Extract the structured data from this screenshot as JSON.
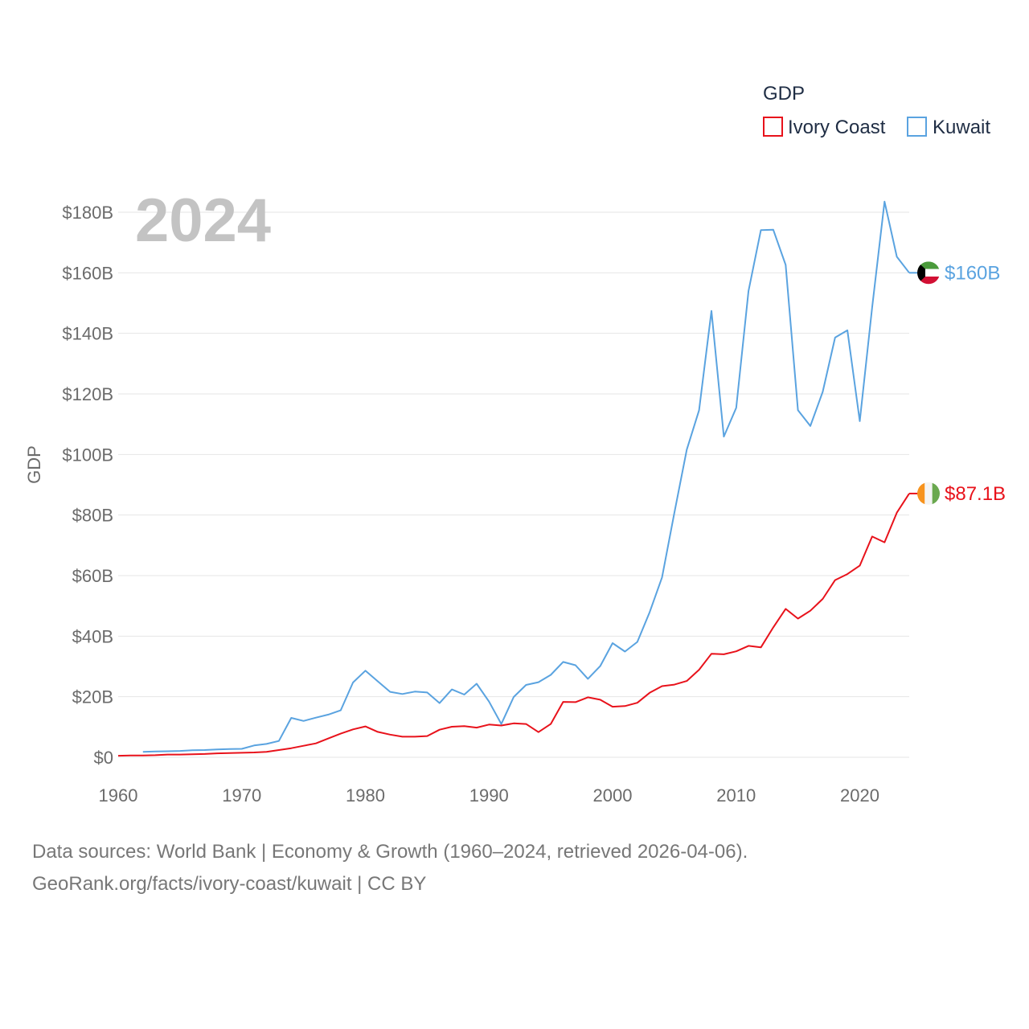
{
  "chart_data": {
    "type": "line",
    "title": "",
    "year_label": "2024",
    "xlabel": "",
    "ylabel": "GDP",
    "xlim": [
      1960,
      2024
    ],
    "ylim": [
      0,
      185
    ],
    "x_ticks": [
      1960,
      1970,
      1980,
      1990,
      2000,
      2010,
      2020
    ],
    "y_ticks": [
      0,
      20,
      40,
      60,
      80,
      100,
      120,
      140,
      160,
      180
    ],
    "y_tick_labels": [
      "$0",
      "$20B",
      "$40B",
      "$60B",
      "$80B",
      "$100B",
      "$120B",
      "$140B",
      "$160B",
      "$180B"
    ],
    "legend": {
      "title": "GDP",
      "position": "top-right",
      "entries": [
        "Ivory Coast",
        "Kuwait"
      ]
    },
    "series": [
      {
        "name": "Ivory Coast",
        "color": "#e8121b",
        "end_label": "$87.1B",
        "flag_icon": "ivory-coast-flag-icon",
        "x": [
          1960,
          1961,
          1962,
          1963,
          1964,
          1965,
          1966,
          1967,
          1968,
          1969,
          1970,
          1971,
          1972,
          1973,
          1974,
          1975,
          1976,
          1977,
          1978,
          1979,
          1980,
          1981,
          1982,
          1983,
          1984,
          1985,
          1986,
          1987,
          1988,
          1989,
          1990,
          1991,
          1992,
          1993,
          1994,
          1995,
          1996,
          1997,
          1998,
          1999,
          2000,
          2001,
          2002,
          2003,
          2004,
          2005,
          2006,
          2007,
          2008,
          2009,
          2010,
          2011,
          2012,
          2013,
          2014,
          2015,
          2016,
          2017,
          2018,
          2019,
          2020,
          2021,
          2022,
          2023,
          2024
        ],
        "values": [
          0.5,
          0.6,
          0.6,
          0.7,
          0.9,
          0.9,
          1.0,
          1.1,
          1.3,
          1.4,
          1.5,
          1.6,
          1.8,
          2.4,
          3.0,
          3.8,
          4.6,
          6.2,
          7.8,
          9.2,
          10.2,
          8.4,
          7.5,
          6.8,
          6.8,
          7.0,
          9.1,
          10.1,
          10.3,
          9.8,
          10.8,
          10.5,
          11.2,
          11.0,
          8.3,
          11.0,
          18.3,
          18.2,
          19.8,
          19.0,
          16.7,
          16.9,
          18.0,
          21.3,
          23.5,
          24.0,
          25.2,
          28.9,
          34.2,
          34.0,
          35.0,
          36.8,
          36.3,
          42.9,
          49.0,
          45.8,
          48.4,
          52.3,
          58.5,
          60.5,
          63.3,
          72.9,
          71.0,
          80.8,
          87.1
        ]
      },
      {
        "name": "Kuwait",
        "color": "#5aa3e0",
        "end_label": "$160B",
        "flag_icon": "kuwait-flag-icon",
        "x": [
          1962,
          1963,
          1964,
          1965,
          1966,
          1967,
          1968,
          1969,
          1970,
          1971,
          1972,
          1973,
          1974,
          1975,
          1976,
          1977,
          1978,
          1979,
          1980,
          1981,
          1982,
          1983,
          1984,
          1985,
          1986,
          1987,
          1988,
          1989,
          1990,
          1991,
          1992,
          1993,
          1994,
          1995,
          1996,
          1997,
          1998,
          1999,
          2000,
          2001,
          2002,
          2003,
          2004,
          2005,
          2006,
          2007,
          2008,
          2009,
          2010,
          2011,
          2012,
          2013,
          2014,
          2015,
          2016,
          2017,
          2018,
          2019,
          2020,
          2021,
          2022,
          2023,
          2024
        ],
        "values": [
          1.8,
          1.9,
          2.0,
          2.1,
          2.3,
          2.4,
          2.6,
          2.7,
          2.8,
          3.9,
          4.4,
          5.4,
          13.0,
          12.0,
          13.1,
          14.1,
          15.5,
          24.7,
          28.6,
          25.1,
          21.6,
          20.9,
          21.7,
          21.4,
          17.9,
          22.4,
          20.7,
          24.3,
          18.4,
          11.0,
          19.9,
          23.9,
          24.8,
          27.2,
          31.5,
          30.4,
          25.9,
          30.1,
          37.7,
          34.9,
          38.1,
          47.9,
          59.4,
          80.8,
          101.6,
          114.6,
          147.4,
          105.9,
          115.4,
          154.0,
          174.1,
          174.2,
          162.6,
          114.6,
          109.4,
          120.7,
          138.6,
          141.0,
          111.0,
          148.6,
          183.5,
          165.3,
          160.0
        ]
      }
    ]
  },
  "footer": {
    "line1": "Data sources: World Bank | Economy & Growth (1960–2024, retrieved 2026-04-06).",
    "line2": "GeoRank.org/facts/ivory-coast/kuwait | CC BY"
  }
}
